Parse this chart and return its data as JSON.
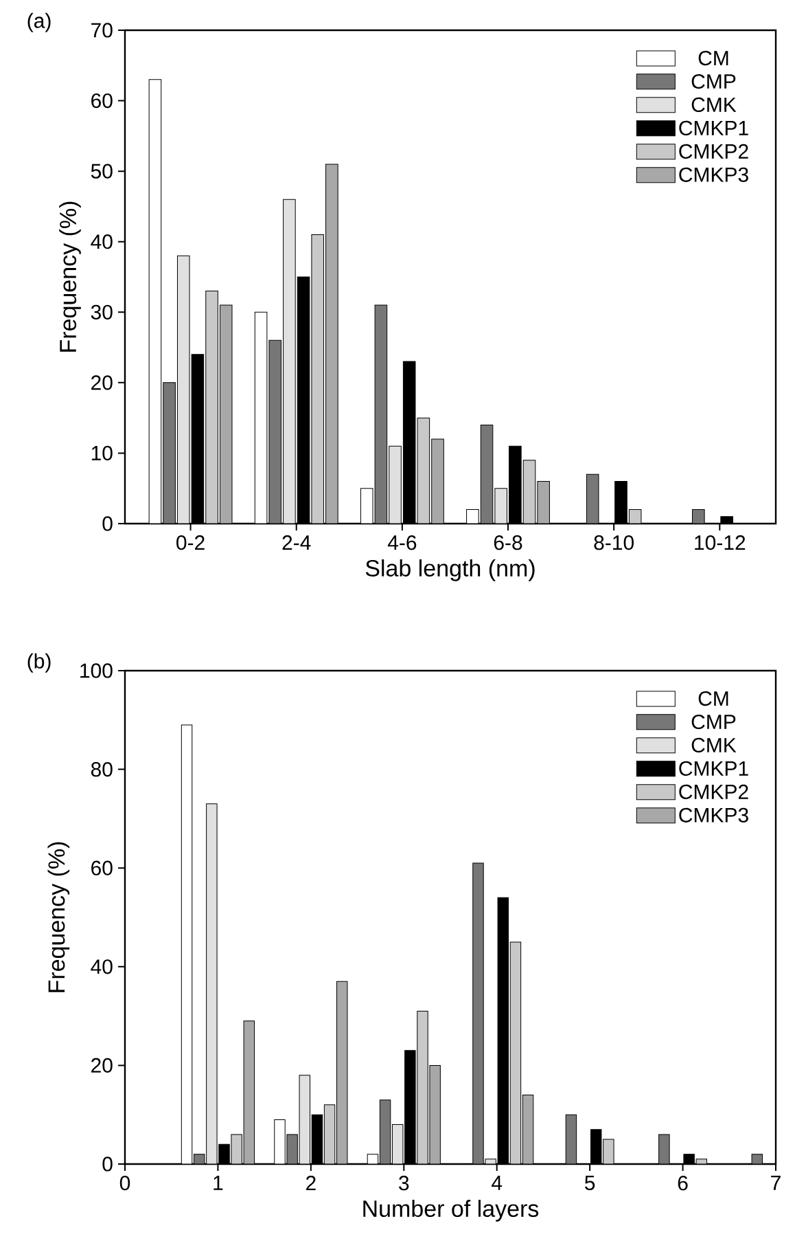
{
  "chart_data": [
    {
      "type": "bar",
      "annotations": [
        "(a)"
      ],
      "xlabel": "Slab length (nm)",
      "ylabel": "Frequency (%)",
      "categories": [
        "0-2",
        "2-4",
        "4-6",
        "6-8",
        "8-10",
        "10-12"
      ],
      "ylim": [
        0,
        70
      ],
      "yticks": [
        0,
        10,
        20,
        30,
        40,
        50,
        60,
        70
      ],
      "legend": "top right",
      "series": [
        {
          "name": "CM",
          "color": "#ffffff",
          "values": [
            63,
            30,
            5,
            2,
            null,
            null
          ]
        },
        {
          "name": "CMP",
          "color": "#777777",
          "values": [
            20,
            26,
            31,
            14,
            7,
            2
          ]
        },
        {
          "name": "CMK",
          "color": "#e0e0e0",
          "values": [
            38,
            46,
            11,
            5,
            null,
            null
          ]
        },
        {
          "name": "CMKP1",
          "color": "#000000",
          "values": [
            24,
            35,
            23,
            11,
            6,
            1
          ]
        },
        {
          "name": "CMKP2",
          "color": "#c8c8c8",
          "values": [
            33,
            41,
            15,
            9,
            2,
            null
          ]
        },
        {
          "name": "CMKP3",
          "color": "#a8a8a8",
          "values": [
            31,
            51,
            12,
            6,
            null,
            null
          ]
        }
      ]
    },
    {
      "type": "bar",
      "annotations": [
        "(b)"
      ],
      "xlabel": "Number of layers",
      "ylabel": "Frequency (%)",
      "x": [
        1,
        2,
        3,
        4,
        5,
        6,
        7
      ],
      "xlim": [
        0,
        7
      ],
      "xticks": [
        0,
        1,
        2,
        3,
        4,
        5,
        6,
        7
      ],
      "ylim": [
        0,
        100
      ],
      "yticks": [
        0,
        20,
        40,
        60,
        80,
        100
      ],
      "legend": "top right",
      "series": [
        {
          "name": "CM",
          "color": "#ffffff",
          "values": [
            89,
            9,
            2,
            null,
            null,
            null,
            null
          ]
        },
        {
          "name": "CMP",
          "color": "#777777",
          "values": [
            2,
            6,
            13,
            61,
            10,
            6,
            2
          ]
        },
        {
          "name": "CMK",
          "color": "#e0e0e0",
          "values": [
            73,
            18,
            8,
            1,
            null,
            null,
            null
          ]
        },
        {
          "name": "CMKP1",
          "color": "#000000",
          "values": [
            4,
            10,
            23,
            54,
            7,
            2,
            null
          ]
        },
        {
          "name": "CMKP2",
          "color": "#c8c8c8",
          "values": [
            6,
            12,
            31,
            45,
            5,
            1,
            null
          ]
        },
        {
          "name": "CMKP3",
          "color": "#a8a8a8",
          "values": [
            29,
            37,
            20,
            14,
            null,
            null,
            null
          ]
        }
      ]
    }
  ]
}
